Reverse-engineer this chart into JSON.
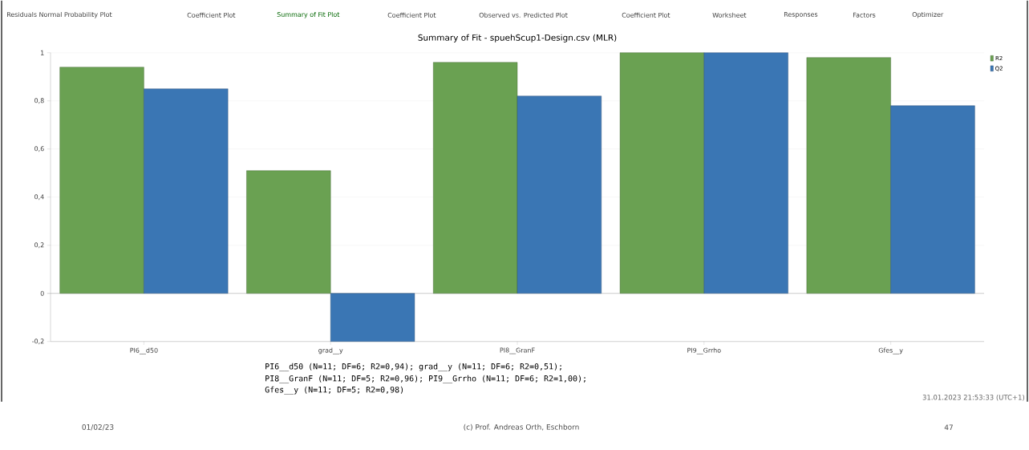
{
  "chart_data": {
    "type": "bar",
    "title": "Summary of Fit - spuehScup1-Design.csv (MLR)",
    "categories": [
      "PI6__d50",
      "grad__y",
      "PI8__GranF",
      "PI9__Grrho",
      "Gfes__y"
    ],
    "series": [
      {
        "name": "R2",
        "color": "#6aa152",
        "values": [
          0.94,
          0.51,
          0.96,
          1.0,
          0.98
        ]
      },
      {
        "name": "Q2",
        "color": "#3a76b4",
        "values": [
          0.85,
          -0.2,
          0.82,
          1.0,
          0.78
        ]
      }
    ],
    "ylim": [
      -0.2,
      1
    ],
    "yticks": [
      {
        "value": -0.2,
        "label": "-0,2"
      },
      {
        "value": 0,
        "label": "0"
      },
      {
        "value": 0.2,
        "label": "0,2"
      },
      {
        "value": 0.4,
        "label": "0,4"
      },
      {
        "value": 0.6,
        "label": "0,6"
      },
      {
        "value": 0.8,
        "label": "0,8"
      },
      {
        "value": 1,
        "label": "1"
      }
    ],
    "grid": "y",
    "legend": "top right",
    "annotations": [
      "Residuals Normal Probability Plot",
      "Coefficient Plot",
      "Summary of Fit Plot",
      "Coefficient Plot",
      "Observed vs. Predicted Plot",
      "Coefficient Plot",
      "Worksheet",
      "Responses",
      "Factors",
      "Optimizer",
      "PI6__d50 (N=11; DF=6; R2=0,94); grad__y (N=11; DF=6; R2=0,51);",
      "PI8__GranF (N=11; DF=5; R2=0,96); PI9__Grrho (N=11; DF=6; R2=1,00);",
      "Gfes__y (N=11; DF=5; R2=0,98)",
      "31.01.2023 21:53:33 (UTC+1)",
      "01/02/23",
      "(c) Prof. Andreas Orth, Eschborn",
      "47"
    ]
  }
}
